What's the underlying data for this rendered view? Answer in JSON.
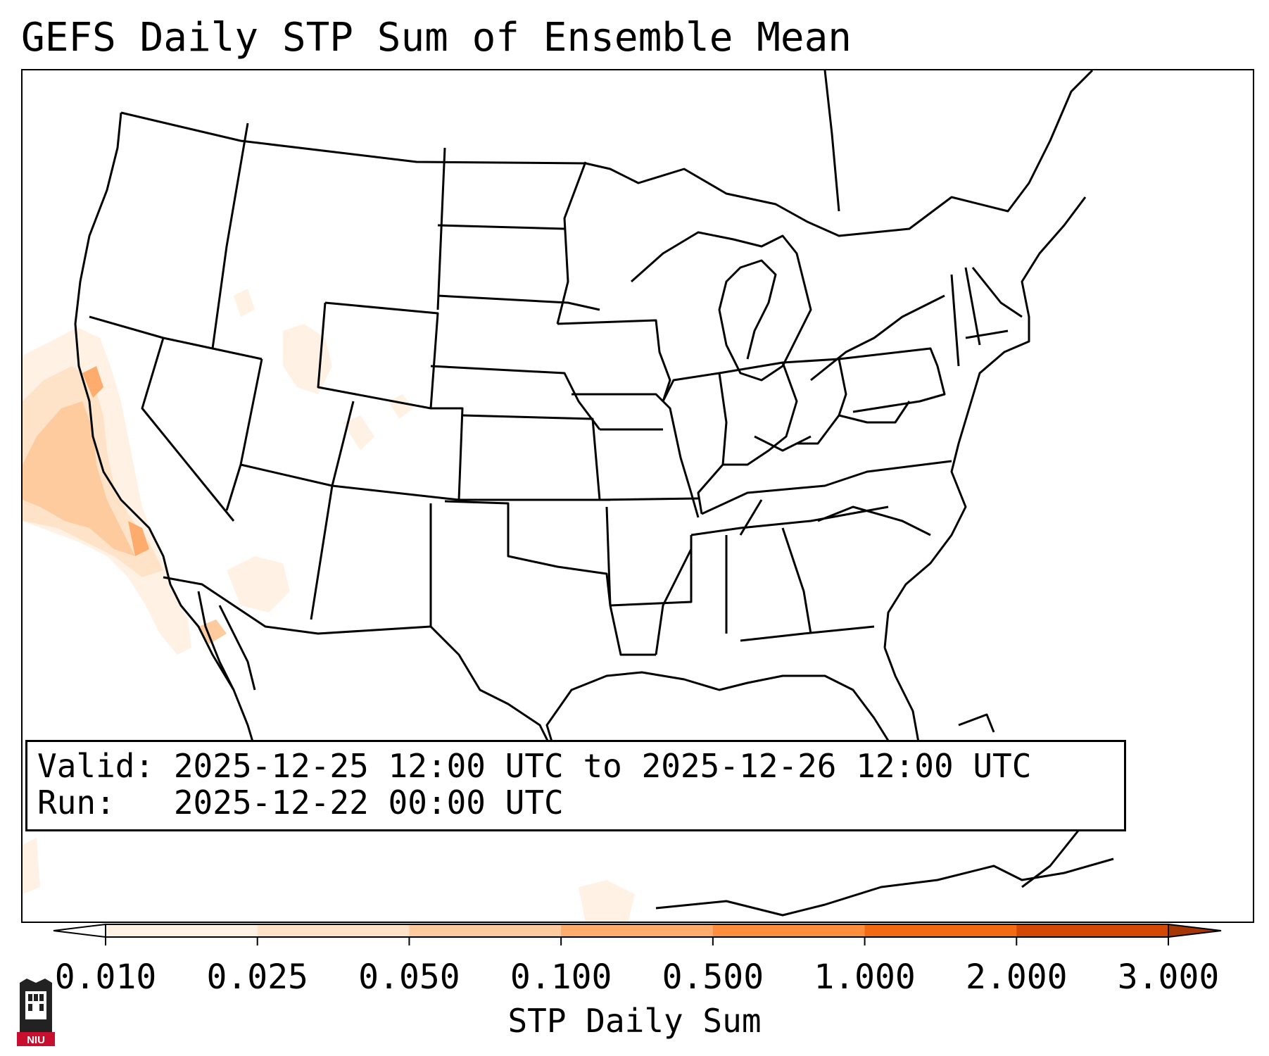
{
  "title": "GEFS Daily STP Sum of Ensemble Mean",
  "valid_line": "Valid: 2025-12-25 12:00 UTC to 2025-12-26 12:00 UTC",
  "run_line": "Run:   2025-12-22 00:00 UTC",
  "colorbar": {
    "label": "STP Daily Sum",
    "ticks": [
      "0.010",
      "0.025",
      "0.050",
      "0.100",
      "0.500",
      "1.000",
      "2.000",
      "3.000"
    ],
    "colors": [
      "#fff1e4",
      "#fee3c8",
      "#fdcb9e",
      "#fdac6e",
      "#fd8e3e",
      "#f26a12",
      "#d34903"
    ],
    "extend_low_color": "#ffffff",
    "extend_high_color": "#a63603"
  },
  "logo": {
    "text": "NIU",
    "color": "#c8102e"
  },
  "map": {
    "projection": "lambert-conformal",
    "region": "contiguous-united-states",
    "boundaries": [
      "coastlines",
      "country-borders",
      "state-borders"
    ],
    "field": "STP daily sum",
    "shaded_area": "Pacific coast of California and adjacent offshore waters, light patches over Utah and Arizona"
  }
}
